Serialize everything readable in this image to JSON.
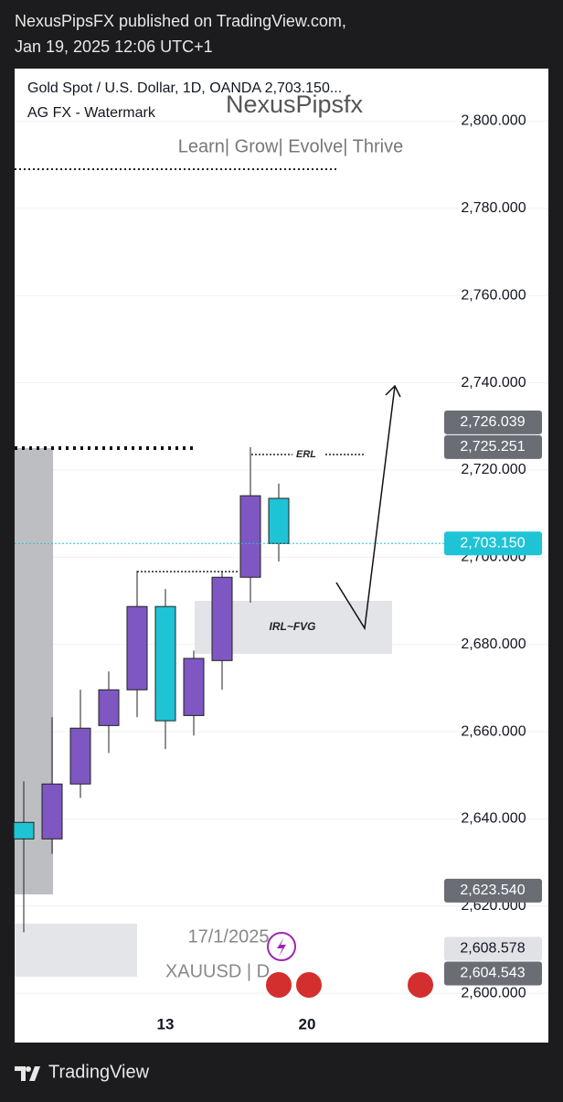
{
  "header": {
    "line1": "NexusPipsFX published on TradingView.com,",
    "line2": "Jan 19, 2025 12:06 UTC+1"
  },
  "legend": {
    "symbol": "Gold Spot / U.S. Dollar, 1D, OANDA  2,703.150...",
    "indicator": "AG FX - Watermark"
  },
  "watermark": {
    "name": "NexusPipsfx",
    "tagline": "Learn| Grow| Evolve| Thrive",
    "date": "17/1/2025",
    "ticker": "XAUUSD | D"
  },
  "footer": {
    "brand": "TradingView"
  },
  "chart_data": {
    "type": "candlestick",
    "categories": [
      null,
      null,
      null,
      null,
      null,
      "13",
      null,
      null,
      null,
      null,
      "20"
    ],
    "open": [
      2639.2,
      2635.4,
      2648.0,
      2661.4,
      2669.6,
      2688.7,
      2663.7,
      2676.3,
      2695.4,
      2713.5,
      null
    ],
    "high": [
      2648.6,
      2663.3,
      2669.6,
      2673.8,
      2696.9,
      2692.7,
      2678.6,
      2696.9,
      2725.251,
      2716.9,
      null
    ],
    "low": [
      2614.0,
      2632.0,
      2644.8,
      2655.1,
      2663.3,
      2656.0,
      2659.1,
      2669.6,
      2689.6,
      2699.0,
      null
    ],
    "close": [
      2635.4,
      2648.0,
      2660.8,
      2669.6,
      2688.7,
      2662.5,
      2676.8,
      2695.4,
      2714.1,
      2703.15,
      null
    ],
    "up_color": "#7e57c2",
    "down_color": "#1fc3d6",
    "ylim": [
      2595,
      2811
    ],
    "yticks": [
      {
        "value": 2800,
        "label": "2,800.000"
      },
      {
        "value": 2780,
        "label": "2,780.000"
      },
      {
        "value": 2760,
        "label": "2,760.000"
      },
      {
        "value": 2740,
        "label": "2,740.000"
      },
      {
        "value": 2720,
        "label": "2,720.000"
      },
      {
        "value": 2700,
        "label": "2,700.000"
      },
      {
        "value": 2680,
        "label": "2,680.000"
      },
      {
        "value": 2660,
        "label": "2,660.000"
      },
      {
        "value": 2640,
        "label": "2,640.000"
      },
      {
        "value": 2620,
        "label": "2,620.000"
      },
      {
        "value": 2600,
        "label": "2,600.000"
      }
    ],
    "grid": true,
    "price_tags": [
      {
        "value": 2726.039,
        "label": "2,726.039",
        "color": "#6a6d74"
      },
      {
        "value": 2725.251,
        "label": "2,725.251",
        "color": "#6a6d74"
      },
      {
        "value": 2703.15,
        "label": "2,703.150",
        "color": "#1fc3d6"
      },
      {
        "value": 2623.54,
        "label": "2,623.540",
        "color": "#6a6d74"
      },
      {
        "value": 2608.578,
        "label": "2,608.578",
        "color": "#e1e2e6"
      },
      {
        "value": 2604.543,
        "label": "2,604.543",
        "color": "#6a6d74"
      }
    ],
    "annotations": {
      "erl": "ERL",
      "irl": "IRL~FVG"
    }
  }
}
